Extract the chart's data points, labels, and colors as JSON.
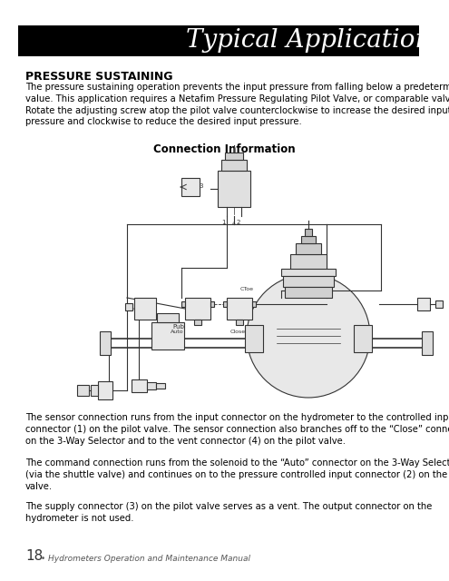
{
  "title": "Typical Applications",
  "title_bg_color": "#000000",
  "title_text_color": "#ffffff",
  "title_font": "serif",
  "title_fontsize": 20,
  "section_heading": "PRESSURE SUSTAINING",
  "section_heading_fontsize": 9,
  "body_text_1": "The pressure sustaining operation prevents the input pressure from falling below a predetermined\nvalue. This application requires a Netafim Pressure Regulating Pilot Valve, or comparable valve.\nRotate the adjusting screw atop the pilot valve counterclockwise to increase the desired input\npressure and clockwise to reduce the desired input pressure.",
  "body_text_fontsize": 7.2,
  "connection_info_label": "Connection Information",
  "connection_info_fontsize": 8.5,
  "body_text_2": "The sensor connection runs from the input connector on the hydrometer to the controlled input\nconnector (1) on the pilot valve. The sensor connection also branches off to the “Close” connector\non the 3-Way Selector and to the vent connector (4) on the pilot valve.",
  "body_text_3": "The command connection runs from the solenoid to the “Auto” connector on the 3-Way Selector\n(via the shuttle valve) and continues on to the pressure controlled input connector (2) on the pilot\nvalve.",
  "body_text_4": "The supply connector (3) on the pilot valve serves as a vent. The output connector on the\nhydrometer is not used.",
  "footer_number": "18",
  "footer_text": " • Hydrometers Operation and Maintenance Manual",
  "footer_fontsize": 6.5,
  "page_bg_color": "#ffffff",
  "lc": "#333333",
  "lw": 0.8
}
